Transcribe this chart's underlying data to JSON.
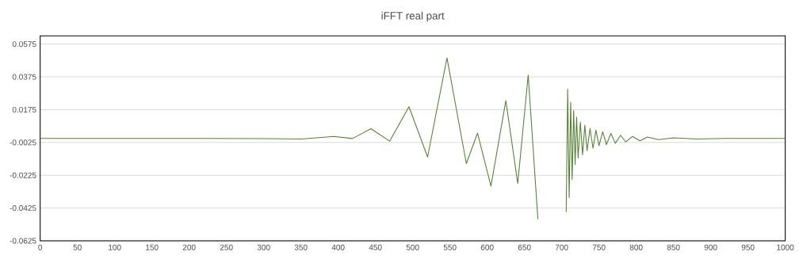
{
  "chart_data": {
    "type": "line",
    "title": "iFFT real part",
    "x": [
      0,
      100,
      200,
      300,
      350,
      394,
      419,
      444,
      469,
      495,
      520,
      546,
      572,
      587,
      605,
      625,
      641,
      655,
      668,
      679,
      687,
      690,
      693,
      696,
      698,
      700,
      702,
      704,
      706,
      708,
      710,
      712,
      714,
      716,
      718,
      720,
      722,
      725,
      728,
      731,
      734,
      738,
      742,
      746,
      750,
      755,
      760,
      766,
      772,
      779,
      786,
      795,
      805,
      815,
      830,
      850,
      880,
      920,
      1000
    ],
    "values": [
      0,
      0,
      0,
      -0.0002,
      -0.0004,
      0.0012,
      -0.0001,
      0.0059,
      -0.0017,
      0.0193,
      -0.0114,
      0.0491,
      -0.0154,
      0.0032,
      -0.0291,
      0.023,
      -0.0275,
      0.0386,
      -0.0493,
      null,
      null,
      null,
      null,
      null,
      null,
      null,
      null,
      null,
      -0.045,
      0.03,
      -0.036,
      0.022,
      -0.025,
      0.017,
      -0.016,
      0.013,
      -0.012,
      0.01,
      -0.01,
      0.008,
      -0.0075,
      0.006,
      -0.006,
      0.005,
      -0.0045,
      0.004,
      -0.0038,
      0.003,
      -0.003,
      0.0019,
      -0.0022,
      0.0012,
      -0.0015,
      0.0008,
      -0.0008,
      0.0003,
      -0.0004,
      0,
      0
    ],
    "color": "#548235",
    "xlim": [
      0,
      1000
    ],
    "ylim": [
      -0.0625,
      0.0625
    ],
    "xticks": [
      0,
      50,
      100,
      150,
      200,
      250,
      300,
      350,
      400,
      450,
      500,
      550,
      600,
      650,
      700,
      750,
      800,
      850,
      900,
      950,
      1000
    ],
    "yticks": [
      -0.0625,
      -0.0425,
      -0.0225,
      -0.0025,
      0.0175,
      0.0375,
      0.0575
    ],
    "grid": "y"
  }
}
